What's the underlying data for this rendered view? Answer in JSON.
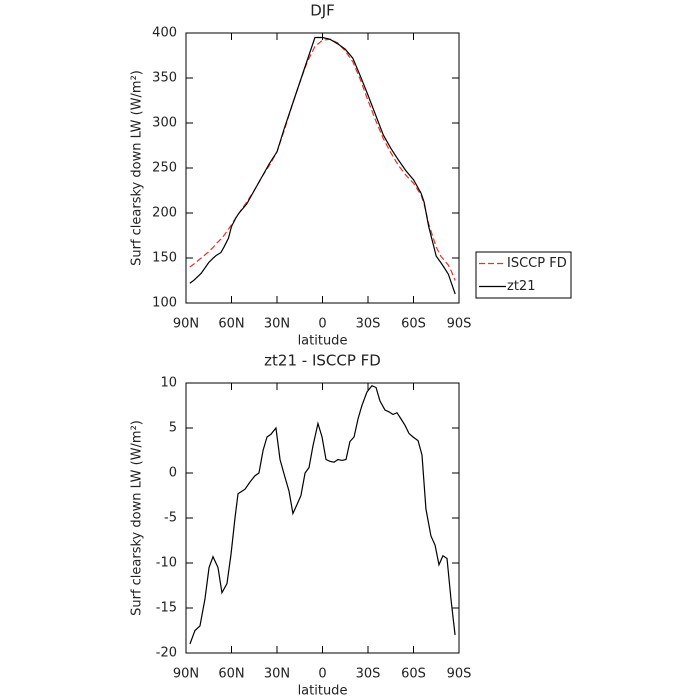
{
  "chart_data": [
    {
      "type": "line",
      "title": "DJF",
      "xlabel": "latitude",
      "ylabel": "Surf clearsky down LW (W/m²)",
      "xlim": [
        90,
        -90
      ],
      "xticks": [
        {
          "value": 90,
          "label": "90N"
        },
        {
          "value": 60,
          "label": "60N"
        },
        {
          "value": 30,
          "label": "30N"
        },
        0,
        {
          "value": -30,
          "label": "30S"
        },
        {
          "value": -60,
          "label": "60S"
        },
        {
          "value": -90,
          "label": "90S"
        }
      ],
      "ylim": [
        100,
        400
      ],
      "yticks": [
        100,
        150,
        200,
        250,
        300,
        350,
        400
      ],
      "legend": "right",
      "x": [
        87.5,
        85,
        80,
        75,
        72,
        70,
        67,
        65,
        62,
        60,
        57,
        55,
        50,
        45,
        40,
        35,
        30,
        25,
        20,
        15,
        10,
        5,
        0,
        -5,
        -10,
        -15,
        -20,
        -25,
        -30,
        -35,
        -40,
        -45,
        -50,
        -55,
        -60,
        -65,
        -67,
        -70,
        -75,
        -78,
        -80,
        -83,
        -85,
        -87.5
      ],
      "series": [
        {
          "name": "ISCCP FD",
          "color": "#e8322b",
          "dashed": true,
          "values": [
            140,
            143,
            150,
            157,
            162,
            166,
            171,
            175,
            182,
            187,
            195,
            200,
            212,
            225,
            240,
            253,
            268,
            293,
            320,
            345,
            368,
            385,
            392,
            393,
            389,
            380,
            368,
            348,
            325,
            303,
            283,
            267,
            253,
            242,
            233,
            220,
            210,
            188,
            162,
            152,
            148,
            142,
            135,
            125
          ]
        },
        {
          "name": "zt21",
          "color": "#000000",
          "dashed": false,
          "values": [
            122,
            125,
            133,
            145,
            150,
            153,
            156,
            162,
            172,
            185,
            195,
            200,
            210,
            225,
            240,
            255,
            268,
            295,
            320,
            345,
            370,
            395,
            395,
            393,
            388,
            382,
            372,
            352,
            331,
            309,
            287,
            272,
            259,
            247,
            237,
            222,
            212,
            185,
            152,
            145,
            140,
            132,
            122,
            110
          ]
        }
      ]
    },
    {
      "type": "line",
      "title": "zt21 - ISCCP FD",
      "xlabel": "latitude",
      "ylabel": "Surf clearsky down LW (W/m²)",
      "xlim": [
        90,
        -90
      ],
      "xticks": [
        {
          "value": 90,
          "label": "90N"
        },
        {
          "value": 60,
          "label": "60N"
        },
        {
          "value": 30,
          "label": "30N"
        },
        0,
        {
          "value": -30,
          "label": "30S"
        },
        {
          "value": -60,
          "label": "60S"
        },
        {
          "value": -90,
          "label": "90S"
        }
      ],
      "ylim": [
        -20,
        10
      ],
      "yticks": [
        -20,
        -15,
        -10,
        -5,
        0,
        5,
        10
      ],
      "x": [
        87.4,
        84.1,
        80.8,
        77.5,
        74.8,
        72.2,
        68.9,
        66.3,
        63.0,
        60.3,
        57.7,
        55.7,
        51.1,
        47.8,
        44.5,
        41.9,
        39.2,
        36.6,
        34.0,
        30.7,
        28.0,
        24.7,
        22.1,
        19.5,
        16.8,
        14.2,
        11.5,
        8.9,
        6.3,
        3.0,
        0.3,
        -2.3,
        -4.9,
        -7.6,
        -10.2,
        -12.9,
        -15.5,
        -18.1,
        -20.8,
        -23.4,
        -26.0,
        -29.3,
        -32.6,
        -35.3,
        -37.9,
        -41.2,
        -43.8,
        -46.5,
        -49.1,
        -51.8,
        -54.4,
        -57.0,
        -59.7,
        -63.0,
        -65.6,
        -68.2,
        -71.5,
        -74.2,
        -76.8,
        -79.4,
        -82.1,
        -84.7,
        -87.4
      ],
      "series": [
        {
          "color": "#000000",
          "dashed": false,
          "values": [
            -19,
            -17.5,
            -17,
            -14,
            -10.5,
            -9.3,
            -10.5,
            -13.3,
            -12.3,
            -9,
            -5,
            -2.3,
            -1.8,
            -1,
            -0.3,
            0,
            2.5,
            4,
            4.3,
            5,
            1.5,
            -0.5,
            -2,
            -4.5,
            -3.5,
            -2.5,
            0,
            0.6,
            3,
            5.5,
            4,
            1.5,
            1.3,
            1.2,
            1.5,
            1.4,
            1.5,
            3.5,
            4,
            6,
            7.5,
            9,
            9.7,
            9.5,
            8,
            7,
            6.8,
            6.5,
            6.7,
            6,
            5.3,
            4.4,
            4,
            3.6,
            2,
            -4,
            -7,
            -8,
            -10.2,
            -9.2,
            -9.5,
            -14,
            -18
          ]
        }
      ]
    }
  ]
}
